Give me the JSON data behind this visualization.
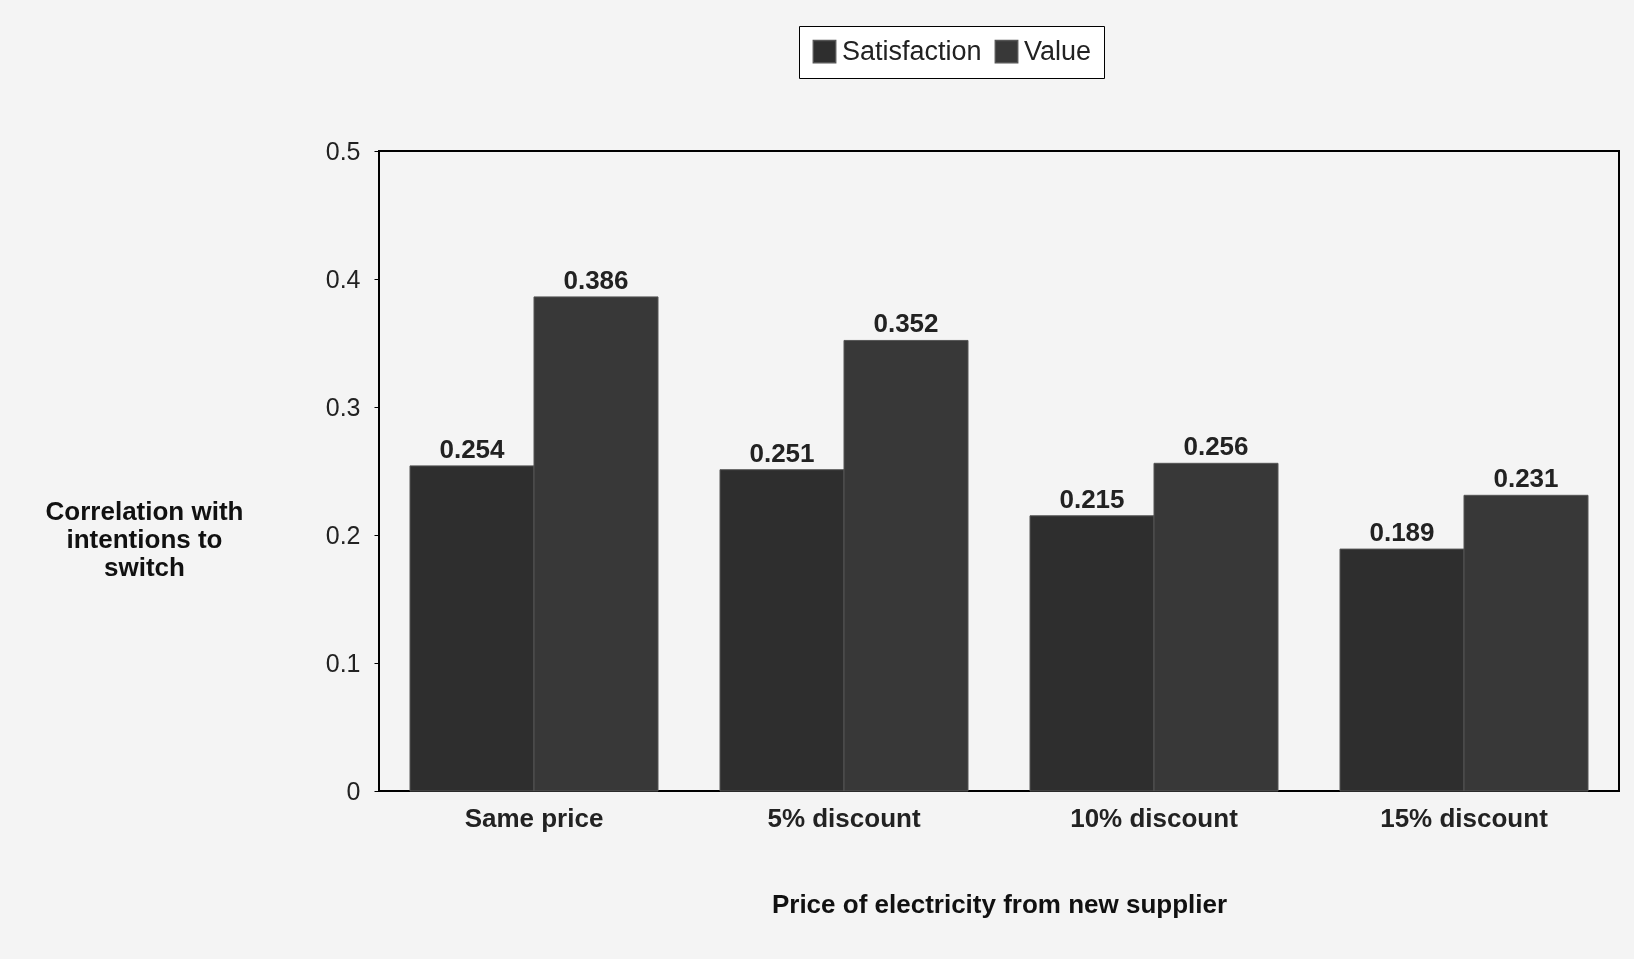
{
  "chart_data": {
    "type": "bar",
    "xlabel": "Price of electricity from new supplier",
    "ylabel": "Correlation with intentions to switch",
    "categories": [
      "Same price",
      "5% discount",
      "10% discount",
      "15% discount"
    ],
    "series": [
      {
        "name": "Satisfaction",
        "color": "#2e2e2e",
        "values": [
          0.254,
          0.251,
          0.215,
          0.189
        ]
      },
      {
        "name": "Value",
        "color": "#383838",
        "values": [
          0.386,
          0.352,
          0.256,
          0.231
        ]
      }
    ],
    "ylim": [
      0,
      0.5
    ],
    "yticks": [
      0,
      0.1,
      0.2,
      0.3,
      0.4,
      0.5
    ],
    "grid": false,
    "legend": "top",
    "data_labels": true
  }
}
